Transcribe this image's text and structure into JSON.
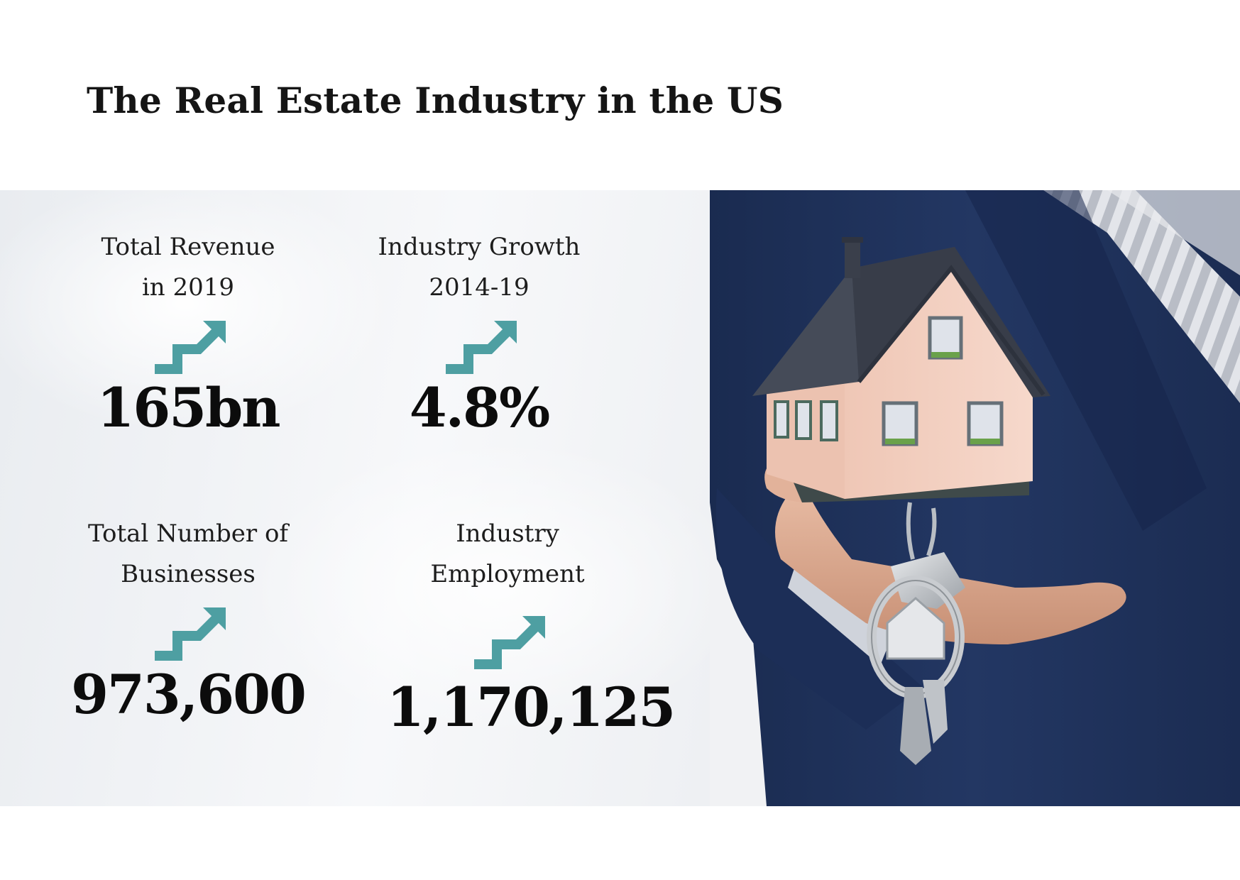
{
  "title": "The Real Estate Industry in the US",
  "stats": [
    {
      "label_line1": "Total Revenue",
      "label_line2": "in 2019",
      "value": "165bn"
    },
    {
      "label_line1": "Industry Growth",
      "label_line2": "2014-19",
      "value": "4.8%"
    },
    {
      "label_line1": "Total Number of",
      "label_line2": "Businesses",
      "value": "973,600"
    },
    {
      "label_line1": "Industry",
      "label_line2": "Employment",
      "value": "1,170,125"
    }
  ],
  "colors": {
    "arrow": "#4e9fa2",
    "suit": "#1f3158",
    "house_wall": "#f0cdbf",
    "roof": "#3e4350"
  },
  "icons": [
    "trend-up-arrow-icon",
    "house-photo",
    "keys-icon"
  ]
}
